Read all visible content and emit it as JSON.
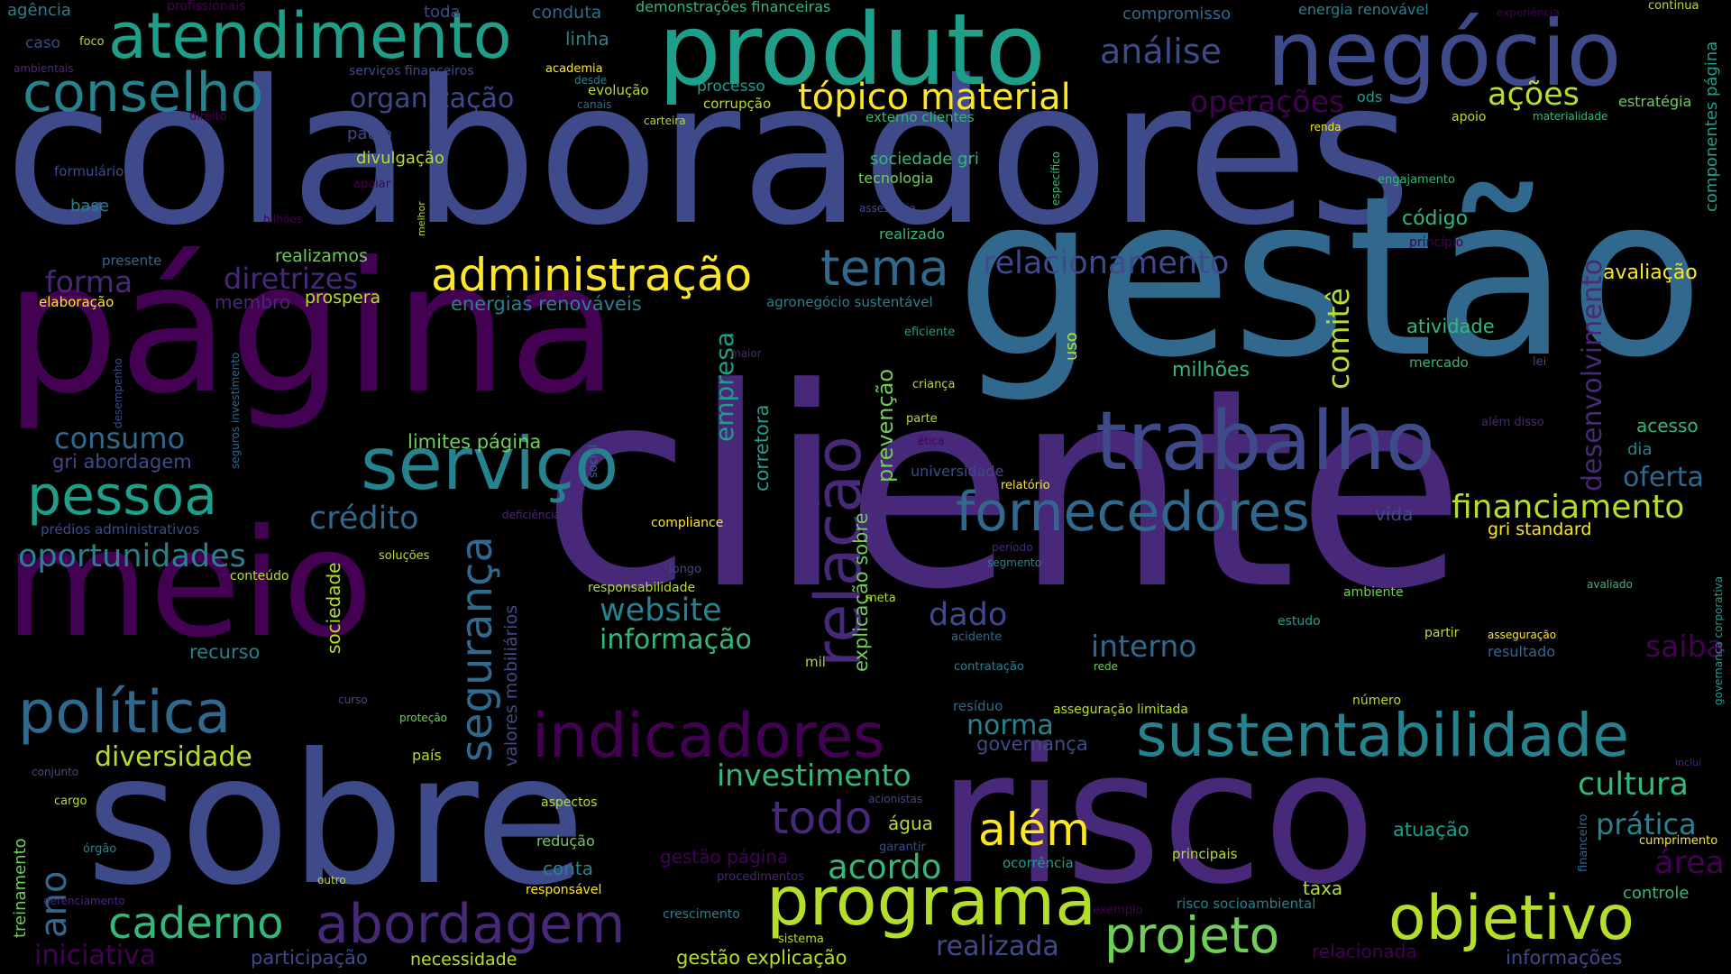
{
  "colors": {
    "background": "#000000",
    "palette": [
      "#440154",
      "#482878",
      "#3e4a89",
      "#31688e",
      "#26828e",
      "#1f9e89",
      "#35b779",
      "#6ece58",
      "#b5de2b",
      "#fde725"
    ]
  },
  "words": {
    "colaboradores": "colaboradores",
    "cliente": "cliente",
    "gestao": "gestão",
    "pagina": "página",
    "sobre": "sobre",
    "risco": "risco",
    "meio": "meio",
    "produto": "produto",
    "negocio": "negócio",
    "trabalho": "trabalho",
    "servico": "serviço",
    "atendimento": "atendimento",
    "conselho": "conselho",
    "indicadores": "indicadores",
    "sustentabilidade": "sustentabilidade",
    "fornecedores": "fornecedores",
    "programa": "programa",
    "objetivo": "objetivo",
    "abordagem": "abordagem",
    "politica": "política",
    "pessoa": "pessoa",
    "administracao": "administração",
    "tema": "tema",
    "relacao": "relação",
    "projeto": "projeto",
    "caderno": "caderno",
    "alem": "além",
    "todo": "todo",
    "seguranca": "segurança",
    "topico_material": "tópico material",
    "analise": "análise",
    "relacionamento": "relacionamento",
    "financiamento": "financiamento",
    "oportunidades": "oportunidades",
    "credito": "crédito",
    "consumo": "consumo",
    "diretrizes": "diretrizes",
    "forma": "forma",
    "website": "website",
    "informacao": "informação",
    "comite": "comitê",
    "desenvolvimento": "desenvolvimento",
    "empresa": "empresa",
    "investimento": "investimento",
    "cultura": "cultura",
    "acoes": "ações",
    "operacoes": "operações",
    "organizacao": "organização",
    "acordo": "acordo",
    "diversidade": "diversidade",
    "dado": "dado",
    "interno": "interno",
    "norma": "norma",
    "ano": "ano",
    "area": "área",
    "pratica": "prática",
    "saiba": "saiba",
    "realizada": "realizada",
    "iniciativa": "iniciativa",
    "oferta": "oferta",
    "codigo": "código",
    "avaliacao": "avaliação",
    "atividade": "atividade",
    "prevencao": "prevenção",
    "explicacao_sobre": "explicação sobre",
    "corretora": "corretora",
    "sociedade": "sociedade",
    "valores_mobiliarios": "valores mobiliários",
    "recurso": "recurso",
    "membro": "membro",
    "prospera": "prospera",
    "energias_renovaveis": "energias renováveis",
    "milhoes": "milhões",
    "limites_pagina": "limites página",
    "gri_abordagem": "gri abordagem",
    "gri_standard": "gri standard",
    "governanca": "governança",
    "gestao_pagina": "gestão página",
    "gestao_explicacao": "gestão explicação",
    "participacao": "participação",
    "necessidade": "necessidade",
    "relacionada": "relacionada",
    "informacoes": "informações",
    "taxa": "taxa",
    "controle": "controle",
    "atuacao": "atuação",
    "agua": "água",
    "conta": "conta",
    "vida": "vida",
    "acesso": "acesso",
    "dia": "dia",
    "agencia": "agência",
    "profissionais": "profissionais",
    "toda": "toda",
    "conduta": "conduta",
    "demonstracoes_financeiras": "demonstrações financeiras",
    "compromisso": "compromisso",
    "energia_renovavel": "energia renovável",
    "experiencia": "experiência",
    "continua": "continua",
    "caso": "caso",
    "foco": "foco",
    "linha": "linha",
    "ambientais": "ambientais",
    "servicos_financeiros": "serviços financeiros",
    "academia": "academia",
    "desde": "desde",
    "evolucao": "evolução",
    "canais": "canais",
    "processo": "processo",
    "corrupcao": "corrupção",
    "carteira": "carteira",
    "externo_clientes": "externo clientes",
    "ods": "ods",
    "estrategia": "estratégia",
    "apoio": "apoio",
    "materialidade": "materialidade",
    "componentes_pagina": "componentes página",
    "renda": "renda",
    "direito": "direito",
    "paulo": "paulo",
    "divulgacao": "divulgação",
    "formulario": "formulário",
    "apoiar": "apoiar",
    "sociedade_gri": "sociedade gri",
    "tecnologia": "tecnologia",
    "especifico": "específico",
    "engajamento": "engajamento",
    "base": "base",
    "bilhoes": "bilhões",
    "melhor": "melhor",
    "assessoria": "assessoria",
    "realizado": "realizado",
    "principio": "princípio",
    "presente": "presente",
    "realizamos": "realizamos",
    "elaboracao": "elaboração",
    "agronegocio_sustentavel": "agronegócio sustentável",
    "maior": "maior",
    "uso": "uso",
    "eficiente": "eficiente",
    "mercado": "mercado",
    "lei": "lei",
    "crianca": "criança",
    "desempenho": "desempenho",
    "seguros_investimento": "seguros investimento",
    "social": "social",
    "parte": "parte",
    "etica": "ética",
    "alem_disso": "além disso",
    "universidade": "universidade",
    "relatorio": "relatório",
    "predios_administrativos": "prédios administrativos",
    "deficiencia": "deficiência",
    "compliance": "compliance",
    "periodo": "período",
    "segmento": "segmento",
    "solucoes": "soluções",
    "longo": "longo",
    "conteudo": "conteúdo",
    "responsabilidade": "responsabilidade",
    "governanca_corporativa": "governança corporativa",
    "avaliado": "avaliado",
    "meta": "meta",
    "ambiente": "ambiente",
    "estudo": "estudo",
    "acidente": "acidente",
    "partir": "partir",
    "asseguracao": "asseguração",
    "resultado": "resultado",
    "mil": "mil",
    "contratacao": "contratação",
    "rede": "rede",
    "curso": "curso",
    "residuo": "resíduo",
    "asseguracao_limitada": "asseguração limitada",
    "numero": "número",
    "protecao": "proteção",
    "pais": "país",
    "conjunto": "conjunto",
    "inclui": "inclui",
    "cargo": "cargo",
    "aspectos": "aspectos",
    "acionistas": "acionistas",
    "treinamento": "treinamento",
    "financeiro": "financeiro",
    "cumprimento": "cumprimento",
    "orgao": "órgão",
    "reducao": "redução",
    "garantir": "garantir",
    "ocorrencia": "ocorrência",
    "principais": "principais",
    "outro": "outro",
    "responsavel": "responsável",
    "procedimentos": "procedimentos",
    "exemplo": "exemplo",
    "risco_socioambiental": "risco socioambiental",
    "gerenciamento": "gerenciamento",
    "crescimento": "crescimento",
    "sistema": "sistema"
  }
}
